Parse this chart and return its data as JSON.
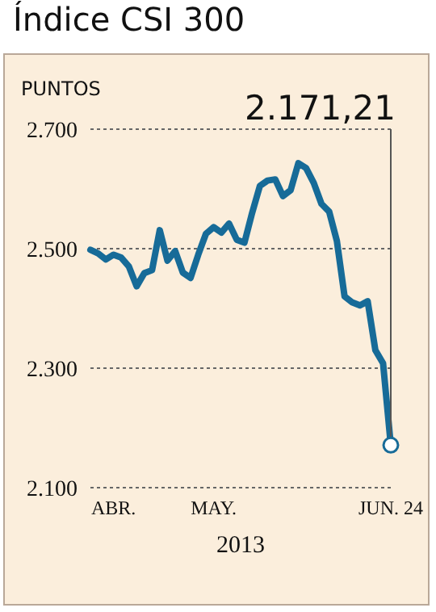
{
  "chart_data": {
    "type": "line",
    "title": "Índice CSI 300",
    "ylabel": "PUNTOS",
    "xlabel": "2013",
    "categories": [
      null,
      null,
      null,
      "ABR.",
      null,
      null,
      null,
      null,
      null,
      null,
      null,
      null,
      null,
      null,
      null,
      null,
      "MAY.",
      null,
      null,
      null,
      null,
      null,
      null,
      null,
      null,
      null,
      null,
      null,
      null,
      null,
      null,
      null,
      null,
      null,
      null,
      null,
      null,
      null,
      null,
      "JUN. 24"
    ],
    "series": [
      {
        "color": "#176b98",
        "values": [
          2498,
          2492,
          2482,
          2490,
          2485,
          2470,
          2437,
          2459,
          2464,
          2531,
          2480,
          2496,
          2460,
          2451,
          2490,
          2525,
          2536,
          2527,
          2542,
          2515,
          2510,
          2560,
          2605,
          2614,
          2616,
          2588,
          2598,
          2643,
          2635,
          2610,
          2575,
          2562,
          2513,
          2420,
          2410,
          2405,
          2412,
          2330,
          2308,
          2171.21
        ]
      }
    ],
    "ylim": [
      2100,
      2700
    ],
    "yticks": [
      {
        "value": 2100,
        "label": "2.100"
      },
      {
        "value": 2300,
        "label": "2.300"
      },
      {
        "value": 2500,
        "label": "2.500"
      },
      {
        "value": 2700,
        "label": "2.700"
      }
    ],
    "grid": "y",
    "marker": "none",
    "line_style": "solid",
    "annotations": [
      "2.171,21"
    ]
  }
}
